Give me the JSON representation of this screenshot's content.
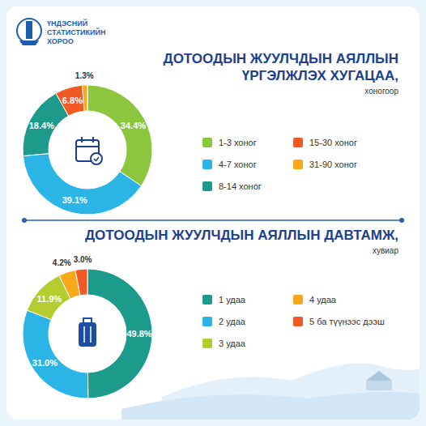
{
  "header": {
    "org_lines": [
      "ҮНДЭСНИЙ",
      "СТАТИСТИКИЙН",
      "ХОРОО"
    ]
  },
  "chart_data": [
    {
      "type": "pie",
      "title": "ДОТООДЫН ЖУУЛЧДЫН АЯЛЛЫН ҮРГЭЛЖЛЭХ ХУГАЦАА,",
      "subtitle": "хоногоор",
      "categories": [
        "1-3 хоног",
        "4-7 хоног",
        "8-14 хоног",
        "15-30 хоног",
        "31-90 хоног"
      ],
      "values": [
        34.4,
        39.1,
        18.4,
        6.8,
        1.3
      ],
      "value_labels": [
        "34.4%",
        "39.1%",
        "18.4%",
        "6.8%",
        "1.3%"
      ],
      "colors": [
        "#8cc63f",
        "#2bb5e6",
        "#1c9a8c",
        "#f15a24",
        "#f7a81b"
      ],
      "data_labels": true,
      "legend": "right"
    },
    {
      "type": "pie",
      "title": "ДОТООДЫН ЖУУЛЧДЫН АЯЛЛЫН ДАВТАМЖ,",
      "subtitle": "хувиар",
      "categories": [
        "1 удаа",
        "2 удаа",
        "3 удаа",
        "4 удаа",
        "5 ба түүнээс дээш"
      ],
      "values": [
        49.8,
        31.0,
        11.9,
        4.2,
        3.0
      ],
      "value_labels": [
        "49.8%",
        "31.0%",
        "11.9%",
        "4.2%",
        "3.0%"
      ],
      "colors": [
        "#1c9a8c",
        "#2bb5e6",
        "#b5cc2e",
        "#f7a81b",
        "#f15a24"
      ],
      "data_labels": true,
      "legend": "right"
    }
  ]
}
